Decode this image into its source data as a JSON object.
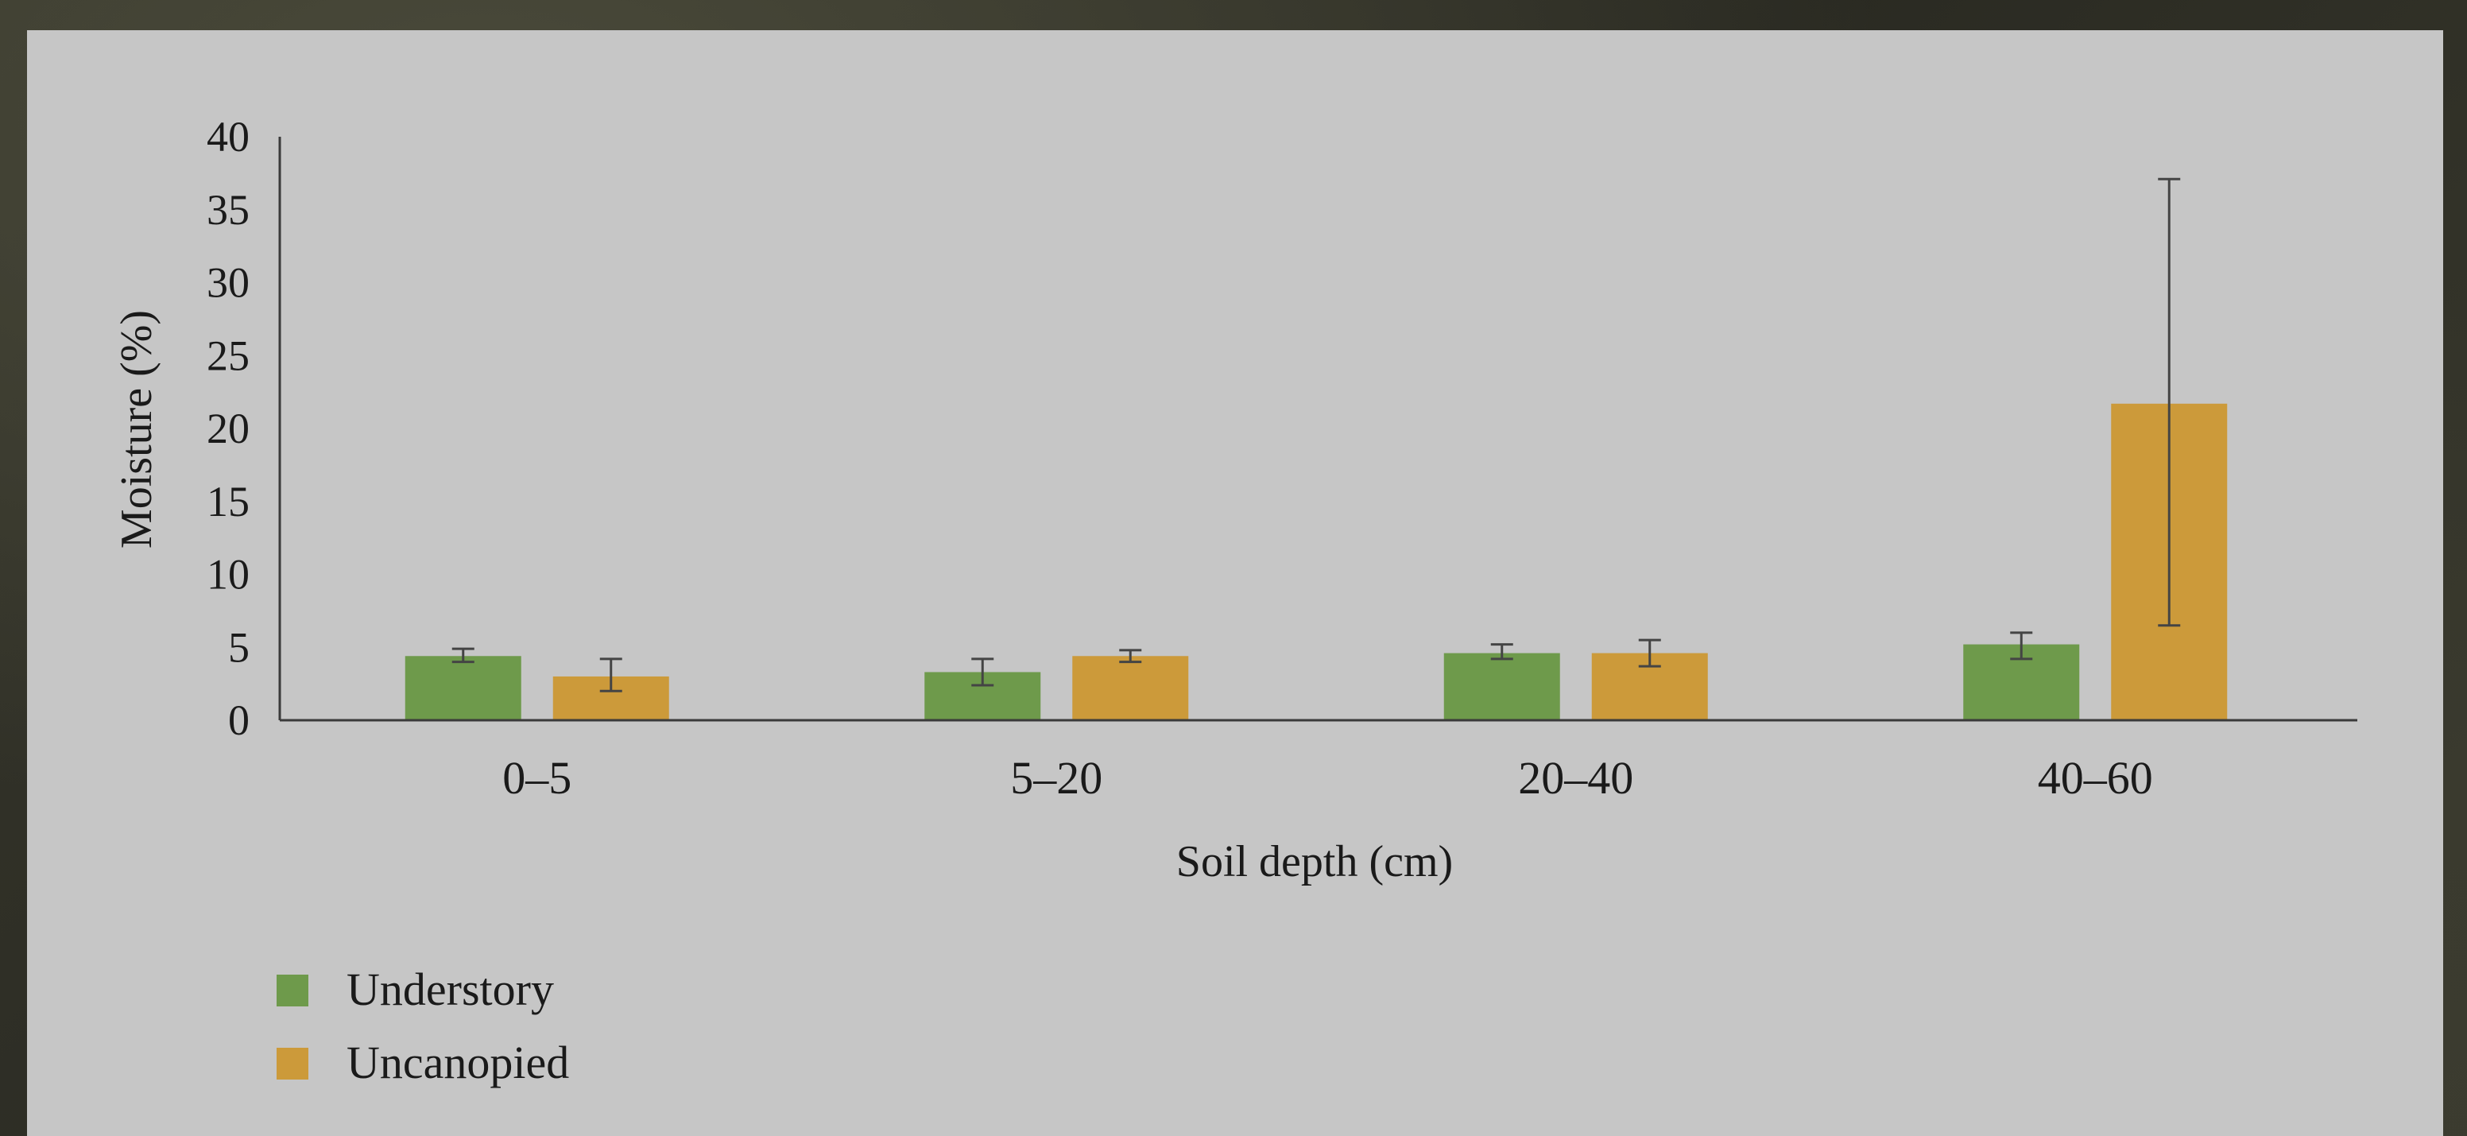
{
  "chart_data": {
    "type": "bar",
    "title": "",
    "xlabel": "Soil depth (cm)",
    "ylabel": "Moisture (%)",
    "ylim": [
      0,
      40
    ],
    "yticks": [
      0,
      5,
      10,
      15,
      20,
      25,
      30,
      35,
      40
    ],
    "categories": [
      "0–5",
      "5–20",
      "20–40",
      "40–60"
    ],
    "grid": false,
    "legend_position": "bottom-left",
    "series": [
      {
        "name": "Understory",
        "color": "#6e9a4b",
        "values": [
          4.4,
          3.3,
          4.6,
          5.2
        ],
        "error_low": [
          4.0,
          2.4,
          4.2,
          4.2
        ],
        "error_high": [
          4.9,
          4.2,
          5.2,
          6.0
        ]
      },
      {
        "name": "Uncanopied",
        "color": "#cc9a3a",
        "values": [
          3.0,
          4.4,
          4.6,
          21.7
        ],
        "error_low": [
          2.0,
          4.0,
          3.7,
          6.5
        ],
        "error_high": [
          4.2,
          4.8,
          5.5,
          37.1
        ]
      }
    ]
  }
}
